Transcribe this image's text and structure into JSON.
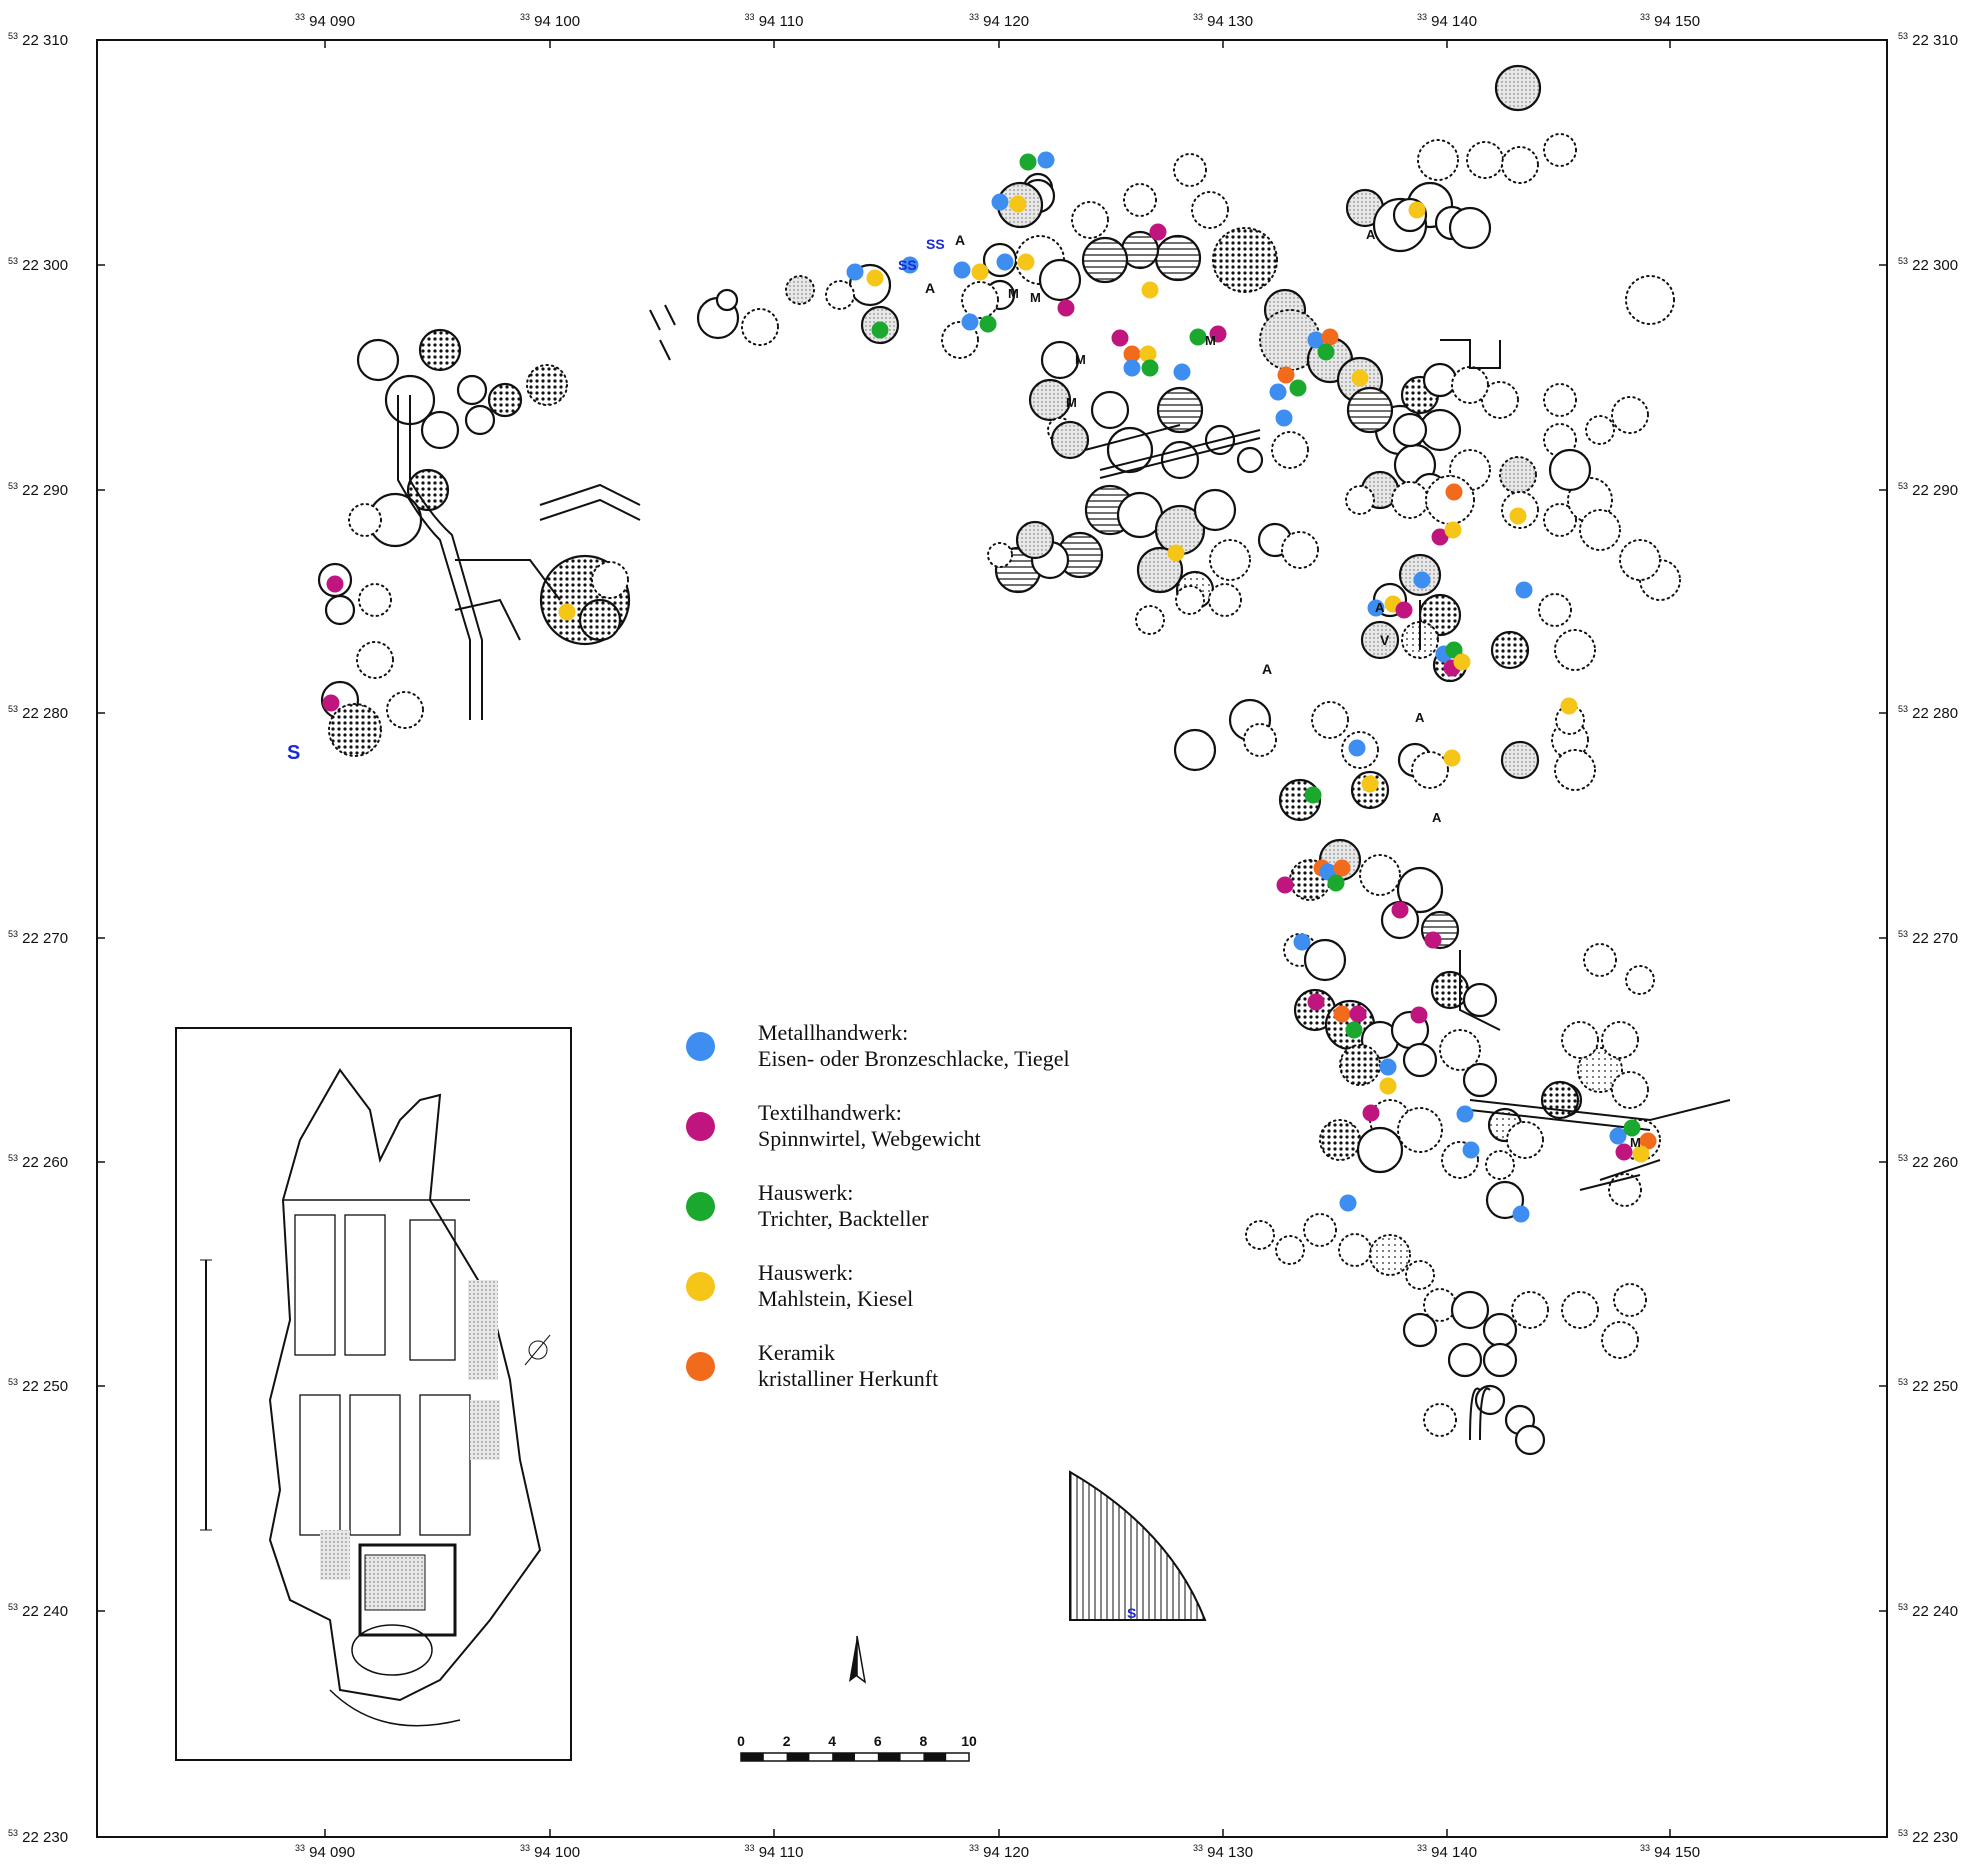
{
  "map": {
    "x_ticks": [
      "94 090",
      "94 100",
      "94 110",
      "94 120",
      "94 130",
      "94 140",
      "94 150"
    ],
    "x_prefix": "33",
    "y_ticks": [
      "22 310",
      "22 300",
      "22 290",
      "22 280",
      "22 270",
      "22 260",
      "22 250",
      "22 240",
      "22 230"
    ],
    "y_prefix": "53"
  },
  "legend": {
    "items": [
      {
        "color": "#3d8ef0",
        "line1": "Metallhandwerk:",
        "line2": "Eisen- oder Bronzeschlacke, Tiegel"
      },
      {
        "color": "#c0157e",
        "line1": "Textilhandwerk:",
        "line2": "Spinnwirtel, Webgewicht"
      },
      {
        "color": "#1aa82e",
        "line1": "Hauswerk:",
        "line2": "Trichter, Backteller"
      },
      {
        "color": "#f5c518",
        "line1": "Hauswerk:",
        "line2": "Mahlstein, Kiesel"
      },
      {
        "color": "#f26b1d",
        "line1": "Keramik",
        "line2": "kristalliner Herkunft"
      }
    ]
  },
  "scale_bar": {
    "labels": [
      "0",
      "2",
      "4",
      "6",
      "8",
      "10"
    ]
  },
  "markers": {
    "blue": "#3d8ef0",
    "magenta": "#c0157e",
    "green": "#1aa82e",
    "yellow": "#f5c518",
    "orange": "#f26b1d",
    "symbols": [
      "S",
      "SS",
      "SS",
      "S",
      "A",
      "A",
      "M",
      "M",
      "M",
      "M",
      "M",
      "A",
      "V",
      "A",
      "A",
      "A",
      "M",
      "A"
    ]
  }
}
